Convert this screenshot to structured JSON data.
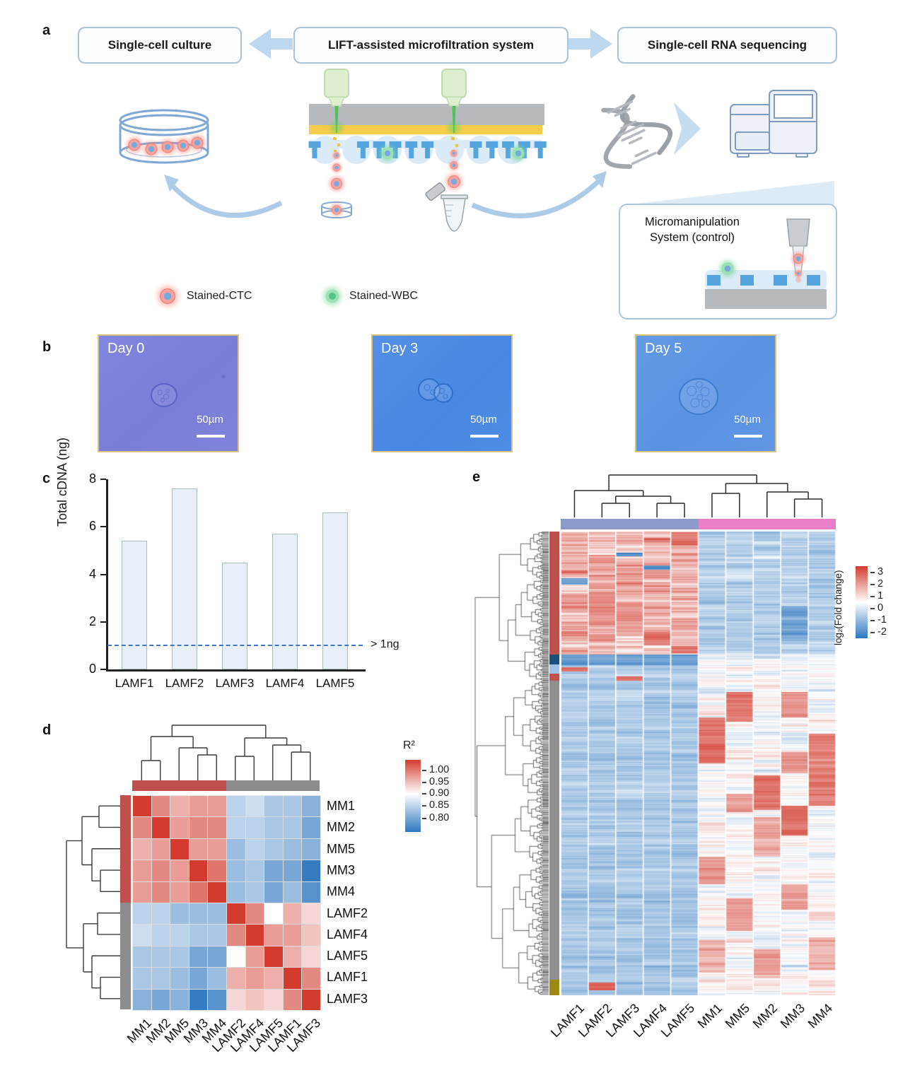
{
  "panels": {
    "a": "a",
    "b": "b",
    "c": "c",
    "d": "d",
    "e": "e"
  },
  "flow": {
    "boxes": [
      "Single-cell culture",
      "LIFT-assisted microfiltration system",
      "Single-cell RNA sequencing"
    ]
  },
  "legend": {
    "ctc": "Stained-CTC",
    "wbc": "Stained-WBC"
  },
  "inset": {
    "line1": "Micromanipulation",
    "line2": "System (control)"
  },
  "microscopy": [
    {
      "label": "Day 0",
      "scale": "50µm"
    },
    {
      "label": "Day 3",
      "scale": "50µm"
    },
    {
      "label": "Day 5",
      "scale": "50µm"
    }
  ],
  "chart_data": [
    {
      "id": "cdna_bar",
      "type": "bar",
      "categories": [
        "LAMF1",
        "LAMF2",
        "LAMF3",
        "LAMF4",
        "LAMF5"
      ],
      "values": [
        5.4,
        7.6,
        4.5,
        5.7,
        6.6
      ],
      "title": "",
      "xlabel": "",
      "ylabel": "Total cDNA (ng)",
      "ylim": [
        0,
        8
      ],
      "yticks": [
        0,
        2,
        4,
        6,
        8
      ],
      "threshold": {
        "value": 1,
        "label": "> 1ng",
        "color": "#3f78c0"
      },
      "bar_fill": "#e9eff8",
      "bar_border": "#a7bfb4"
    },
    {
      "id": "r2_heatmap",
      "type": "heatmap",
      "labels": [
        "MM1",
        "MM2",
        "MM5",
        "MM3",
        "MM4",
        "LAMF2",
        "LAMF4",
        "LAMF5",
        "LAMF1",
        "LAMF3"
      ],
      "matrix": [
        [
          1.0,
          0.96,
          0.94,
          0.95,
          0.95,
          0.86,
          0.87,
          0.85,
          0.85,
          0.83
        ],
        [
          0.96,
          1.0,
          0.95,
          0.96,
          0.96,
          0.86,
          0.86,
          0.85,
          0.85,
          0.82
        ],
        [
          0.94,
          0.95,
          1.0,
          0.95,
          0.95,
          0.84,
          0.86,
          0.85,
          0.84,
          0.83
        ],
        [
          0.95,
          0.96,
          0.95,
          1.0,
          0.97,
          0.84,
          0.85,
          0.82,
          0.82,
          0.78
        ],
        [
          0.95,
          0.96,
          0.95,
          0.97,
          1.0,
          0.84,
          0.85,
          0.82,
          0.84,
          0.8
        ],
        [
          0.86,
          0.86,
          0.84,
          0.84,
          0.84,
          1.0,
          0.96,
          0.9,
          0.94,
          0.92
        ],
        [
          0.87,
          0.86,
          0.86,
          0.85,
          0.85,
          0.96,
          1.0,
          0.95,
          0.95,
          0.93
        ],
        [
          0.85,
          0.85,
          0.85,
          0.82,
          0.82,
          0.9,
          0.95,
          1.0,
          0.94,
          0.92
        ],
        [
          0.85,
          0.85,
          0.84,
          0.82,
          0.84,
          0.94,
          0.95,
          0.94,
          1.0,
          0.96
        ],
        [
          0.83,
          0.82,
          0.83,
          0.78,
          0.8,
          0.92,
          0.93,
          0.92,
          0.96,
          1.0
        ]
      ],
      "vmin": 0.775,
      "vmax": 1.0,
      "white_at": 0.9,
      "colorbar": {
        "title": "R²",
        "tick_labels": [
          "1.00",
          "0.95",
          "0.90",
          "0.85",
          "0.80"
        ]
      },
      "row_groups": [
        {
          "color": "#c0504d",
          "count": 5
        },
        {
          "color": "#8c8c8c",
          "count": 5
        }
      ],
      "col_groups": [
        {
          "color": "#c0504d",
          "count": 5
        },
        {
          "color": "#8c8c8c",
          "count": 5
        }
      ]
    },
    {
      "id": "expr_heatmap",
      "type": "heatmap",
      "columns": [
        "LAMF1",
        "LAMF2",
        "LAMF3",
        "LAMF4",
        "LAMF5",
        "MM1",
        "MM5",
        "MM2",
        "MM3",
        "MM4"
      ],
      "vmin": -2.5,
      "vmax": 3.5,
      "white_at": 0.5,
      "colorbar": {
        "title": "log₂(Fold change)",
        "tick_labels": [
          "3",
          "2",
          "1",
          "0",
          "-1",
          "-2"
        ],
        "tick_values": [
          3,
          2,
          1,
          0,
          -1,
          -2
        ]
      },
      "col_groups": [
        {
          "color": "#8b9ac9",
          "count": 5
        },
        {
          "color": "#ea80c9",
          "count": 5
        }
      ],
      "row_segments": [
        {
          "color": "#c0504d",
          "frac": 0.265,
          "lamf_mean": 1.6,
          "mm_mean": -0.55
        },
        {
          "color": "#1f4e7a",
          "frac": 0.022,
          "lamf_mean": -1.7,
          "mm_mean": 0.35
        },
        {
          "color": "#9dc3e6",
          "frac": 0.02,
          "lamf_mean": -0.75,
          "mm_mean": 0.55
        },
        {
          "color": "#c0504d",
          "frac": 0.015,
          "lamf_mean": -0.5,
          "mm_mean": 0.5
        },
        {
          "color": "#8f8f8f",
          "frac": 0.645,
          "lamf_mean": -0.72,
          "mm_mean": 0.5
        },
        {
          "color": "#9c8a12",
          "frac": 0.033,
          "lamf_mean": -0.7,
          "mm_mean": 0.65
        }
      ],
      "patches": [
        {
          "col": 4,
          "from": 0.005,
          "to": 0.03,
          "value": 2.6
        },
        {
          "col": 2,
          "from": 0.045,
          "to": 0.053,
          "value": -2.1
        },
        {
          "col": 3,
          "from": 0.073,
          "to": 0.081,
          "value": -1.9
        },
        {
          "col": 0,
          "from": 0.1,
          "to": 0.114,
          "value": -1.6
        },
        {
          "col": 1,
          "from": 0.13,
          "to": 0.2,
          "value": 2.3
        },
        {
          "col": 2,
          "from": 0.155,
          "to": 0.225,
          "value": 2.2
        },
        {
          "col": 8,
          "from": 0.16,
          "to": 0.235,
          "value": -1.5
        },
        {
          "col": 3,
          "from": 0.215,
          "to": 0.245,
          "value": 2.5
        },
        {
          "col": 4,
          "from": 0.246,
          "to": 0.262,
          "value": 2.6
        },
        {
          "col": 0,
          "from": 0.292,
          "to": 0.301,
          "value": 2.8
        },
        {
          "col": 2,
          "from": 0.312,
          "to": 0.321,
          "value": 2.7
        },
        {
          "col": 5,
          "from": 0.4,
          "to": 0.5,
          "value": 2.6
        },
        {
          "col": 5,
          "from": 0.7,
          "to": 0.76,
          "value": 2.1
        },
        {
          "col": 5,
          "from": 0.88,
          "to": 0.95,
          "value": 1.7
        },
        {
          "col": 6,
          "from": 0.345,
          "to": 0.41,
          "value": 2.7
        },
        {
          "col": 6,
          "from": 0.565,
          "to": 0.605,
          "value": 1.9
        },
        {
          "col": 6,
          "from": 0.79,
          "to": 0.86,
          "value": 2.0
        },
        {
          "col": 7,
          "from": 0.525,
          "to": 0.6,
          "value": 2.7
        },
        {
          "col": 7,
          "from": 0.615,
          "to": 0.7,
          "value": 1.7
        },
        {
          "col": 7,
          "from": 0.9,
          "to": 0.955,
          "value": 1.9
        },
        {
          "col": 8,
          "from": 0.345,
          "to": 0.4,
          "value": 2.1
        },
        {
          "col": 8,
          "from": 0.475,
          "to": 0.52,
          "value": 2.1
        },
        {
          "col": 8,
          "from": 0.59,
          "to": 0.655,
          "value": 2.7
        },
        {
          "col": 8,
          "from": 0.76,
          "to": 0.815,
          "value": 1.9
        },
        {
          "col": 9,
          "from": 0.435,
          "to": 0.59,
          "value": 2.4
        },
        {
          "col": 9,
          "from": 0.875,
          "to": 0.945,
          "value": 1.8
        },
        {
          "col": 1,
          "from": 0.972,
          "to": 0.988,
          "value": 2.9
        }
      ]
    }
  ]
}
